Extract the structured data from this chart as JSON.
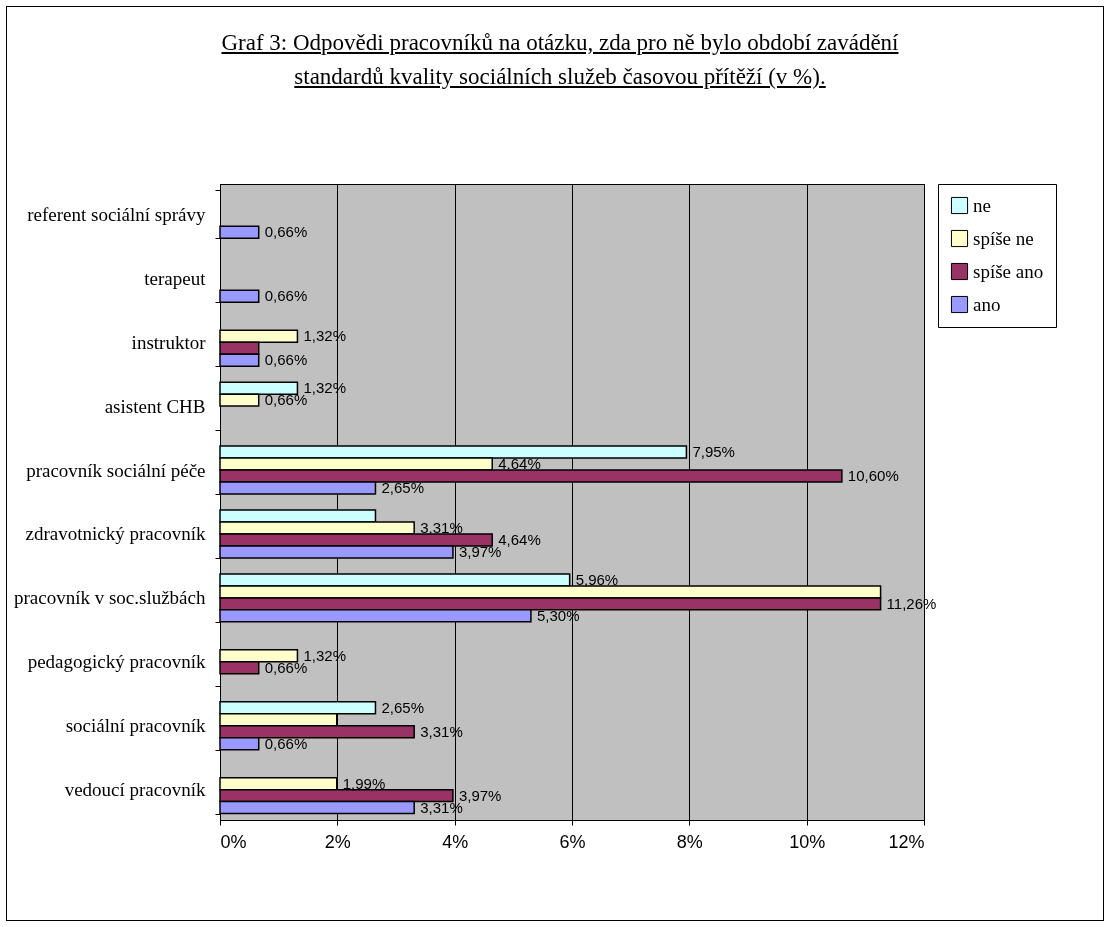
{
  "chart_data": {
    "type": "bar",
    "orientation": "horizontal",
    "title": "Graf 3: Odpovědi pracovníků na otázku, zda pro ně bylo období zavádění standardů kvality sociálních služeb časovou přítěží (v %).",
    "categories": [
      "referent sociální správy",
      "terapeut",
      "instruktor",
      "asistent CHB",
      "pracovník sociální péče",
      "zdravotnický pracovník",
      "pracovník v soc.službách",
      "pedagogický pracovník",
      "sociální pracovník",
      "vedoucí pracovník"
    ],
    "series": [
      {
        "name": "ne",
        "color": "#ccffff",
        "values": [
          null,
          null,
          null,
          1.32,
          7.95,
          2.65,
          5.96,
          null,
          2.65,
          null
        ],
        "value_labels": [
          null,
          null,
          null,
          "1,32%",
          "7,95%",
          null,
          "5,96%",
          null,
          "2,65%",
          null
        ]
      },
      {
        "name": "spíše ne",
        "color": "#ffffcc",
        "values": [
          null,
          null,
          1.32,
          0.66,
          4.64,
          3.31,
          11.26,
          1.32,
          1.99,
          1.99
        ],
        "value_labels": [
          null,
          null,
          "1,32%",
          "0,66%",
          "4,64%",
          "3,31%",
          null,
          "1,32%",
          null,
          "1,99%"
        ]
      },
      {
        "name": "spíše ano",
        "color": "#993366",
        "values": [
          null,
          null,
          0.66,
          null,
          10.6,
          4.64,
          11.26,
          0.66,
          3.31,
          3.97
        ],
        "value_labels": [
          null,
          null,
          null,
          null,
          "10,60%",
          "4,64%",
          "11,26%",
          "0,66%",
          "3,31%",
          "3,97%"
        ]
      },
      {
        "name": "ano",
        "color": "#9999ff",
        "values": [
          0.66,
          0.66,
          0.66,
          null,
          2.65,
          3.97,
          5.3,
          null,
          0.66,
          3.31
        ],
        "value_labels": [
          "0,66%",
          "0,66%",
          "0,66%",
          null,
          "2,65%",
          "3,97%",
          "5,30%",
          null,
          "0,66%",
          "3,31%"
        ]
      }
    ],
    "xlim": [
      0,
      12
    ],
    "xticks": [
      {
        "value": 0,
        "label": "0%"
      },
      {
        "value": 2,
        "label": "2%"
      },
      {
        "value": 4,
        "label": "4%"
      },
      {
        "value": 6,
        "label": "6%"
      },
      {
        "value": 8,
        "label": "8%"
      },
      {
        "value": 10,
        "label": "10%"
      },
      {
        "value": 12,
        "label": "12%"
      }
    ],
    "grid": "x",
    "legend": "right"
  }
}
